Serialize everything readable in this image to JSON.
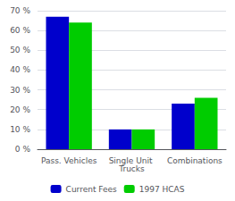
{
  "chart_data": {
    "type": "bar",
    "categories": [
      "Pass. Vehicles",
      "Single Unit Trucks",
      "Combinations"
    ],
    "series": [
      {
        "name": "Current Fees",
        "color": "#0000cc",
        "values": [
          67,
          10,
          23
        ]
      },
      {
        "name": "1997 HCAS",
        "color": "#00cc00",
        "values": [
          64,
          10,
          26
        ]
      }
    ],
    "ylim": [
      0,
      70
    ],
    "yticks": [
      {
        "value": 0,
        "label": "0 %"
      },
      {
        "value": 10,
        "label": "10 %"
      },
      {
        "value": 20,
        "label": "20 %"
      },
      {
        "value": 30,
        "label": "30 %"
      },
      {
        "value": 40,
        "label": "40 %"
      },
      {
        "value": 50,
        "label": "50 %"
      },
      {
        "value": 60,
        "label": "60 %"
      },
      {
        "value": 70,
        "label": "70 %"
      }
    ],
    "grid": true,
    "legend": "bottom"
  }
}
